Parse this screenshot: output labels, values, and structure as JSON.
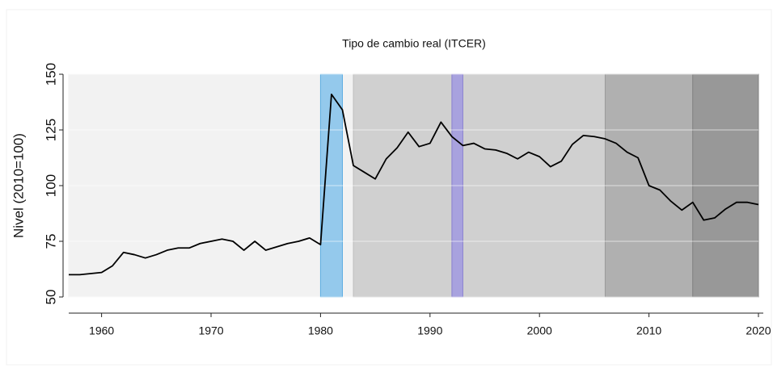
{
  "chart_data": {
    "type": "line",
    "title": "Tipo de cambio real (ITCER)",
    "y_label": "Nivel (2010=100)",
    "x": [
      1957,
      1958,
      1959,
      1960,
      1961,
      1962,
      1963,
      1964,
      1965,
      1966,
      1967,
      1968,
      1969,
      1970,
      1971,
      1972,
      1973,
      1974,
      1975,
      1976,
      1977,
      1978,
      1979,
      1980,
      1981,
      1982,
      1983,
      1984,
      1985,
      1986,
      1987,
      1988,
      1989,
      1990,
      1991,
      1992,
      1993,
      1994,
      1995,
      1996,
      1997,
      1998,
      1999,
      2000,
      2001,
      2002,
      2003,
      2004,
      2005,
      2006,
      2007,
      2008,
      2009,
      2010,
      2011,
      2012,
      2013,
      2014,
      2015,
      2016,
      2017,
      2018,
      2019,
      2020
    ],
    "series": [
      {
        "color": "#000000",
        "values": [
          60,
          60,
          60.5,
          61,
          64,
          70,
          69,
          67.5,
          69,
          71,
          72,
          72,
          74,
          75,
          76,
          75,
          71,
          75,
          71,
          72.5,
          74,
          75,
          76.5,
          73.5,
          141,
          134,
          109,
          106,
          103,
          112,
          117,
          124,
          117.5,
          119,
          128.5,
          122,
          118,
          119,
          116.5,
          116,
          114.5,
          112,
          115,
          113,
          108.5,
          111,
          118.5,
          122.5,
          122,
          121,
          119,
          115,
          112.5,
          100,
          98,
          93,
          89,
          92.5,
          84.5,
          85.5,
          89.5,
          92.5,
          92.5,
          91.5
        ]
      }
    ],
    "bands": [
      {
        "x": [
          1957,
          2020
        ],
        "color": "#f2f2f2",
        "border": "#f2f2f2"
      },
      {
        "x": [
          1980,
          1982
        ],
        "color": "#94c9ec",
        "border": "#5eaee2"
      },
      {
        "x": [
          1983,
          2006
        ],
        "color": "#d0d0d0",
        "border": "#bdbdbd"
      },
      {
        "x": [
          1992,
          1993
        ],
        "color": "#a8a2de",
        "border": "#8a80d0"
      },
      {
        "x": [
          2006,
          2014
        ],
        "color": "#b0b0b0",
        "border": "#9a9a9a"
      },
      {
        "x": [
          2014,
          2020
        ],
        "color": "#989898",
        "border": "#808080"
      }
    ],
    "xlim": [
      1957,
      2020
    ],
    "xticks": [
      1960,
      1970,
      1980,
      1990,
      2000,
      2010,
      2020
    ],
    "ylim": [
      50,
      150
    ],
    "yticks": [
      50,
      75,
      100,
      125,
      150
    ],
    "grid": true
  }
}
